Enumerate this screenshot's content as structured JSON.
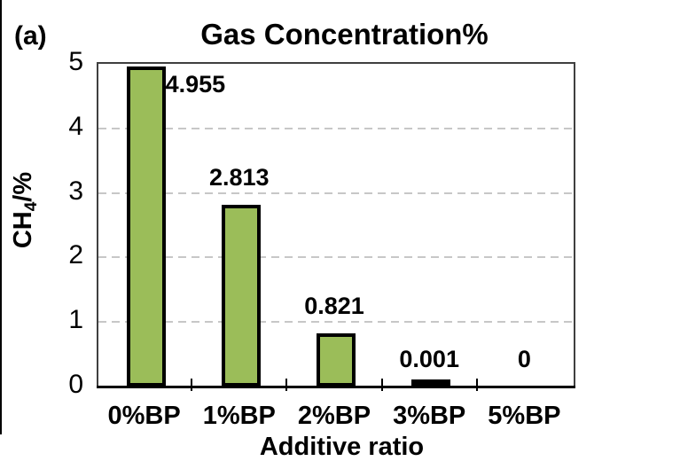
{
  "panel_label": "(a)",
  "chart_data": {
    "type": "bar",
    "title": "Gas Concentration%",
    "xlabel": "Additive ratio",
    "ylabel": {
      "prefix": "CH",
      "sub": "4",
      "suffix": "/%"
    },
    "ylabel_text": "CH4/%",
    "categories": [
      "0%BP",
      "1%BP",
      "2%BP",
      "3%BP",
      "5%BP"
    ],
    "values": [
      4.955,
      2.813,
      0.821,
      0.001,
      0
    ],
    "value_labels": [
      "4.955",
      "2.813",
      "0.821",
      "0.001",
      "0"
    ],
    "ylim": [
      0,
      5
    ],
    "yticks": [
      0,
      1,
      2,
      3,
      4,
      5
    ],
    "grid": "horizontal-dashed",
    "legend": "none",
    "bar_color": "#9BBD59",
    "bar_border_color": "#000000",
    "gridline_color": "#c7c7c7"
  }
}
